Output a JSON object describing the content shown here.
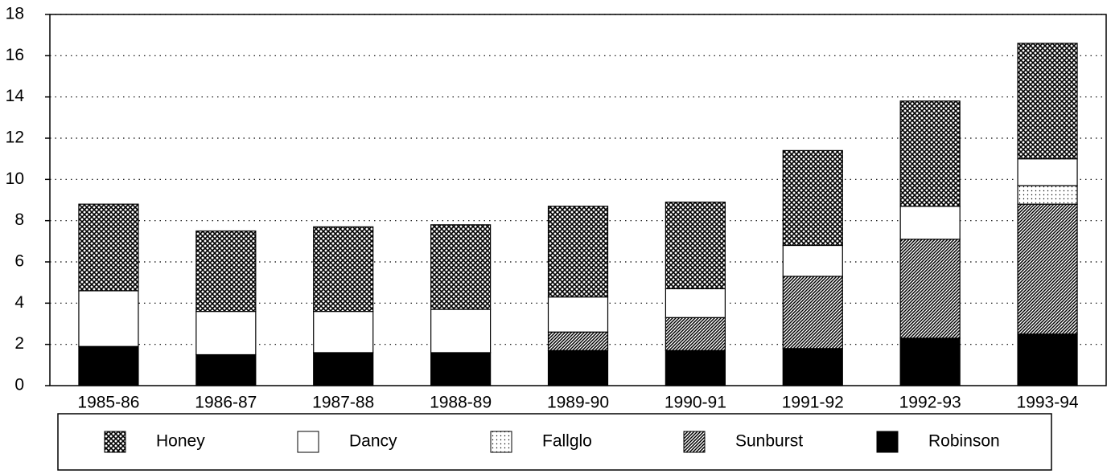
{
  "chart_data": {
    "type": "stacked-bar",
    "categories": [
      "1985-86",
      "1986-87",
      "1987-88",
      "1988-89",
      "1989-90",
      "1990-91",
      "1991-92",
      "1992-93",
      "1993-94"
    ],
    "series": [
      {
        "name": "Honey",
        "color": "#000000",
        "pattern": "crosshatch",
        "values": [
          4.2,
          3.9,
          4.1,
          4.1,
          4.4,
          4.2,
          4.6,
          5.1,
          5.6
        ]
      },
      {
        "name": "Dancy",
        "color": "#ffffff",
        "pattern": "solid",
        "values": [
          2.7,
          2.1,
          2.0,
          2.1,
          1.7,
          1.4,
          1.5,
          1.6,
          1.3
        ]
      },
      {
        "name": "Fallglo",
        "color": "#ffffff",
        "pattern": "dots",
        "values": [
          0,
          0,
          0,
          0,
          0,
          0,
          0,
          0,
          0.9
        ]
      },
      {
        "name": "Sunburst",
        "color": "#000000",
        "pattern": "diagonal",
        "values": [
          0,
          0,
          0,
          0,
          0.9,
          1.6,
          3.5,
          4.8,
          6.3
        ]
      },
      {
        "name": "Robinson",
        "color": "#000000",
        "pattern": "solid",
        "values": [
          1.9,
          1.5,
          1.6,
          1.6,
          1.7,
          1.7,
          1.8,
          2.3,
          2.5
        ]
      }
    ],
    "ylim": [
      0,
      18
    ],
    "yticks": [
      0,
      2,
      4,
      6,
      8,
      10,
      12,
      14,
      16,
      18
    ],
    "grid": true,
    "legend": "bottom"
  }
}
